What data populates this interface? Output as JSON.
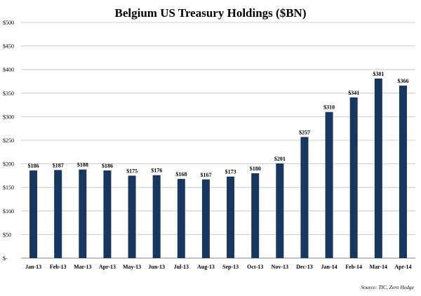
{
  "chart_data": {
    "type": "bar",
    "title": "Belgium US Treasury Holdings ($BN)",
    "categories": [
      "Jan-13",
      "Feb-13",
      "Mar-13",
      "Apr-13",
      "May-13",
      "Jun-13",
      "Jul-13",
      "Aug-13",
      "Sep-13",
      "Oct-13",
      "Nov-13",
      "Dec-13",
      "Jan-14",
      "Feb-14",
      "Mar-14",
      "Apr-14"
    ],
    "values": [
      186,
      187,
      188,
      186,
      175,
      176,
      168,
      167,
      173,
      180,
      201,
      257,
      310,
      341,
      381,
      366
    ],
    "data_labels": [
      "$186",
      "$187",
      "$188",
      "$186",
      "$175",
      "$176",
      "$168",
      "$167",
      "$173",
      "$180",
      "$201",
      "$257",
      "$310",
      "$341",
      "$381",
      "$366"
    ],
    "yticks": [
      0,
      50,
      100,
      150,
      200,
      250,
      300,
      350,
      400,
      450,
      500
    ],
    "ytick_labels": [
      "$-",
      "$50",
      "$100",
      "$150",
      "$200",
      "$250",
      "$300",
      "$350",
      "$400",
      "$450",
      "$500"
    ],
    "ylim": [
      0,
      500
    ],
    "grid": true,
    "bar_color": "#17375e",
    "source": "Source: TIC, Zero Hedge"
  }
}
